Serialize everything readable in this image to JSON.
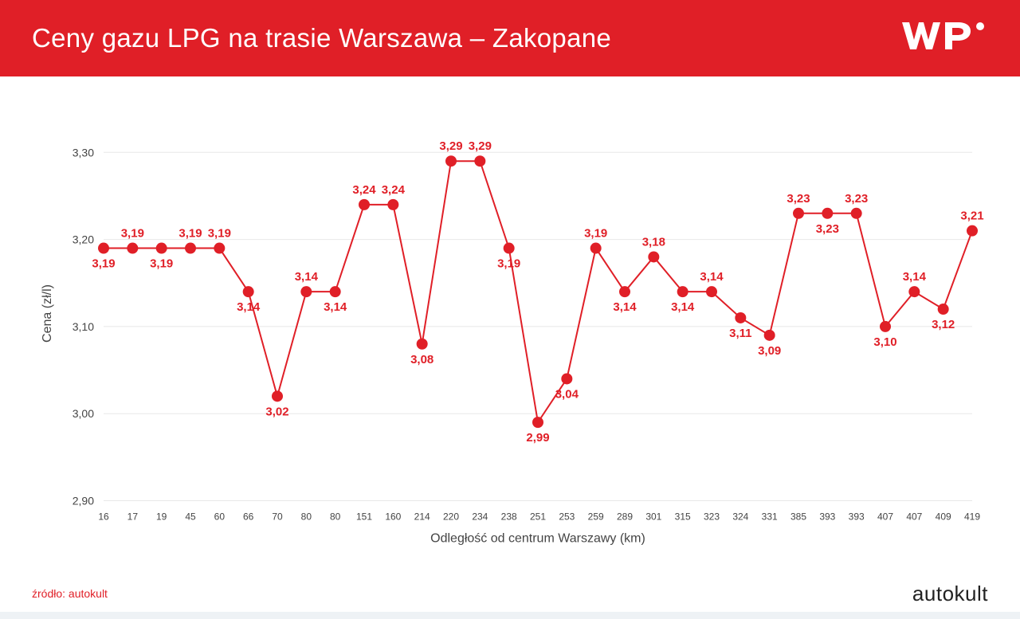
{
  "header": {
    "title": "Ceny gazu LPG na trasie Warszawa – Zakopane",
    "bg_color": "#e01f27",
    "text_color": "#ffffff"
  },
  "chart": {
    "type": "line",
    "line_color": "#e01f27",
    "line_width": 2,
    "marker_color": "#e01f27",
    "marker_radius": 7,
    "label_color": "#e01f27",
    "label_fontsize": 15,
    "background_color": "#ffffff",
    "grid_color": "#e8e8e8",
    "ylabel": "Cena (zł/l)",
    "xlabel": "Odległość od centrum Warszawy (km)",
    "ylim": [
      2.9,
      3.33
    ],
    "yticks": [
      2.9,
      3.0,
      3.1,
      3.2,
      3.3
    ],
    "ytick_labels": [
      "2,90",
      "3,00",
      "3,10",
      "3,20",
      "3,30"
    ],
    "x_categories": [
      "16",
      "17",
      "19",
      "45",
      "60",
      "66",
      "70",
      "80",
      "80",
      "151",
      "160",
      "214",
      "220",
      "234",
      "238",
      "251",
      "253",
      "259",
      "289",
      "301",
      "315",
      "323",
      "324",
      "331",
      "385",
      "393",
      "393",
      "407",
      "407",
      "409",
      "419"
    ],
    "values": [
      3.19,
      3.19,
      3.19,
      3.19,
      3.19,
      3.14,
      3.02,
      3.14,
      3.14,
      3.24,
      3.24,
      3.08,
      3.29,
      3.29,
      3.19,
      2.99,
      3.04,
      3.19,
      3.14,
      3.18,
      3.14,
      3.14,
      3.11,
      3.09,
      3.23,
      3.23,
      3.23,
      3.1,
      3.14,
      3.12,
      3.21
    ],
    "value_labels": [
      "3,19",
      "3,19",
      "3,19",
      "3,19",
      "3,19",
      "3,14",
      "3,02",
      "3,14",
      "3,14",
      "3,24",
      "3,24",
      "3,08",
      "3,29",
      "3,29",
      "3,19",
      "2,99",
      "3,04",
      "3,19",
      "3,14",
      "3,18",
      "3,14",
      "3,14",
      "3,11",
      "3,09",
      "3,23",
      "3,23",
      "3,23",
      "3,10",
      "3,14",
      "3,12",
      "3,21"
    ],
    "label_positions": [
      "below",
      "above",
      "below",
      "above",
      "above",
      "below",
      "below",
      "above",
      "below",
      "above",
      "above",
      "below",
      "above",
      "above",
      "below",
      "below",
      "below",
      "above",
      "below",
      "above",
      "below",
      "above",
      "below",
      "below",
      "above",
      "below",
      "above",
      "below",
      "above",
      "below",
      "above"
    ]
  },
  "footer": {
    "source": "źródło: autokult",
    "brand": "autokult",
    "source_color": "#e01f27",
    "brand_color": "#222222"
  }
}
